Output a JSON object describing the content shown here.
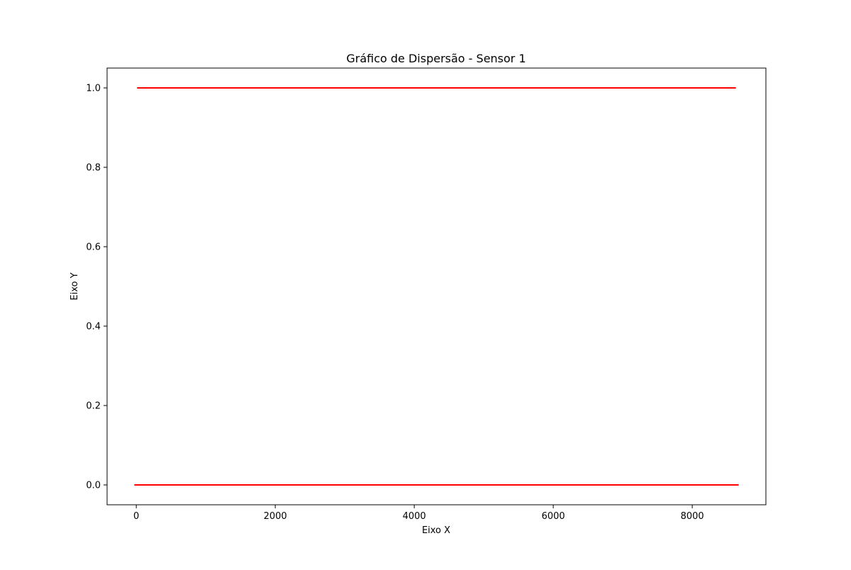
{
  "chart_data": {
    "type": "scatter",
    "title": "Gráfico de Dispersão - Sensor 1",
    "xlabel": "Eixo X",
    "ylabel": "Eixo Y",
    "xlim": [
      -420,
      9060
    ],
    "ylim": [
      -0.05,
      1.05
    ],
    "x_ticks": [
      0,
      2000,
      4000,
      6000,
      8000
    ],
    "x_tick_labels": [
      "0",
      "2000",
      "4000",
      "6000",
      "8000"
    ],
    "y_ticks": [
      0.0,
      0.2,
      0.4,
      0.6,
      0.8,
      1.0
    ],
    "y_tick_labels": [
      "0.0",
      "0.2",
      "0.4",
      "0.6",
      "0.8",
      "1.0"
    ],
    "grid": false,
    "legend": "none",
    "marker_color": "#ff0000",
    "series": [
      {
        "x_start": 0,
        "x_end": 8640,
        "x_step": 40,
        "y": 0
      },
      {
        "x_start": 40,
        "x_end": 8600,
        "x_step": 40,
        "y": 1
      }
    ]
  }
}
